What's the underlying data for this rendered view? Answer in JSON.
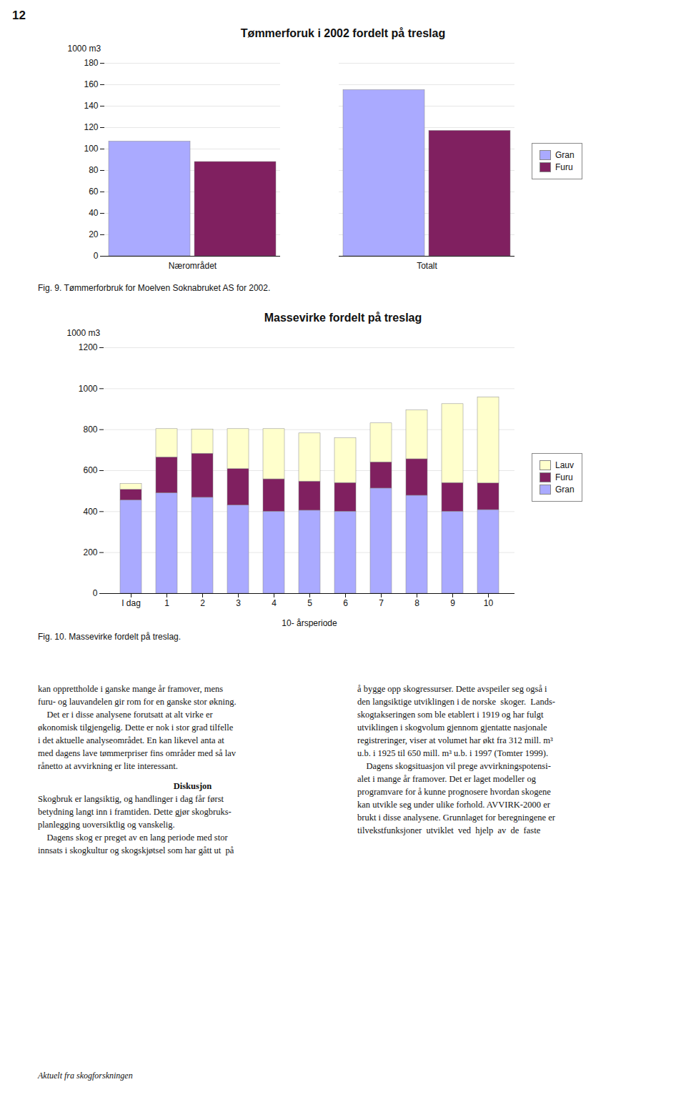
{
  "page_number": "12",
  "chart_data": [
    {
      "type": "bar",
      "title": "Tømmerforuk i 2002 fordelt på treslag",
      "categories": [
        "Nærområdet",
        "Totalt"
      ],
      "series": [
        {
          "name": "Gran",
          "color": "#aaaaff",
          "values": [
            107,
            155
          ]
        },
        {
          "name": "Furu",
          "color": "#802060",
          "values": [
            88,
            117
          ]
        }
      ],
      "ylabel": "1000 m3",
      "ylim": [
        0,
        180
      ],
      "yticks": [
        0,
        20,
        40,
        60,
        80,
        100,
        120,
        140,
        160,
        180
      ],
      "grid": true,
      "legend": "right",
      "caption": "Fig. 9. Tømmerforbruk for Moelven Soknabruket AS for 2002."
    },
    {
      "type": "bar",
      "stacked": true,
      "title": "Massevirke fordelt på treslag",
      "categories": [
        "I dag",
        "1",
        "2",
        "3",
        "4",
        "5",
        "6",
        "7",
        "8",
        "9",
        "10"
      ],
      "series": [
        {
          "name": "Gran",
          "color": "#aaaaff",
          "values": [
            455,
            490,
            468,
            430,
            400,
            405,
            400,
            513,
            478,
            400,
            408
          ]
        },
        {
          "name": "Furu",
          "color": "#802060",
          "values": [
            52,
            175,
            215,
            178,
            158,
            142,
            140,
            128,
            178,
            140,
            130
          ]
        },
        {
          "name": "Lauv",
          "color": "#ffffcc",
          "values": [
            28,
            138,
            118,
            195,
            245,
            235,
            218,
            190,
            238,
            385,
            420
          ]
        }
      ],
      "ylabel": "1000 m3",
      "xlabel": "10- årsperiode",
      "ylim": [
        0,
        1200
      ],
      "yticks": [
        0,
        200,
        400,
        600,
        800,
        1000,
        1200
      ],
      "grid": true,
      "legend": "right",
      "caption": "Fig. 10. Massevirke fordelt på treslag."
    }
  ],
  "text": {
    "col1_lines": [
      "kan opprettholde i ganske mange år framover, mens",
      "furu- og lauvandelen gir rom for en ganske stor økning.",
      "    Det er i disse analysene forutsatt at alt virke er",
      "økonomisk tilgjengelig. Dette er nok i stor grad tilfelle",
      "i det aktuelle analyseområdet. En kan likevel anta at",
      "med dagens lave tømmerpriser fins områder med så lav",
      "rånetto at avvirkning er lite interessant."
    ],
    "diskusjon_header": "Diskusjon",
    "diskusjon_lines": [
      "Skogbruk er langsiktig, og handlinger i dag får først",
      "betydning langt inn i framtiden. Dette gjør skogbruks-",
      "planlegging uoversiktlig og vanskelig.",
      "    Dagens skog er preget av en lang periode med stor",
      "innsats i skogkultur og skogskjøtsel som har gått ut  på"
    ],
    "col2_lines": [
      "å bygge opp skogressurser. Dette avspeiler seg også i",
      "den langsiktige utviklingen i de norske  skoger.  Lands-",
      "skogtakseringen som ble etablert i 1919 og har fulgt",
      "utviklingen i skogvolum gjennom gjentatte nasjonale",
      "registreringer, viser at volumet har økt fra 312 mill. m³",
      "u.b. i 1925 til 650 mill. m³ u.b. i 1997 (Tomter 1999).",
      "    Dagens skogsituasjon vil prege avvirkningspotensi-",
      "alet i mange år framover. Det er laget modeller og",
      "programvare for å kunne prognosere hvordan skogene",
      "kan utvikle seg under ulike forhold. AVVIRK-2000 er",
      "brukt i disse analysene. Grunnlaget for beregningene er",
      "tilvekstfunksjoner  utviklet  ved  hjelp  av  de  faste"
    ],
    "footer": "Aktuelt fra skogforskningen"
  }
}
